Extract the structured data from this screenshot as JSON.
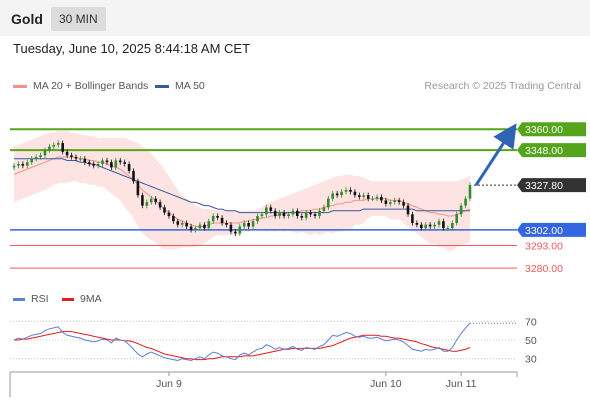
{
  "header": {
    "title": "Gold",
    "timeframe": "30 MIN"
  },
  "timestamp": "Tuesday, June 10, 2025 8:44:18 AM CET",
  "legend": {
    "ma20": {
      "label": "MA 20 + Bollinger Bands",
      "color": "#f4908c"
    },
    "ma50": {
      "label": "MA 50",
      "color": "#3a5a9c"
    },
    "rsi": {
      "label": "RSI",
      "color": "#5b7fd4"
    },
    "rsi_ma": {
      "label": "9MA",
      "color": "#e31c1c"
    }
  },
  "credit": "Research © 2025 Trading Central",
  "colors": {
    "up": "#2e8b2e",
    "down": "#111111",
    "resistance": "#55a51c",
    "pivot": "#3366e0",
    "support": "#ef5a5a",
    "price": "#333333",
    "arrow": "#2e64b4",
    "band": "#fde0de"
  },
  "chart_data": [
    {
      "type": "candlestick",
      "instrument": "Gold",
      "timeframe": "30 MIN",
      "ylim": [
        3272,
        3378
      ],
      "x_ticks": [
        "Jun 9",
        "Jun 10",
        "Jun 11"
      ],
      "levels": [
        {
          "label": "3360.00",
          "value": 3360.0,
          "kind": "resistance"
        },
        {
          "label": "3348.00",
          "value": 3348.0,
          "kind": "resistance"
        },
        {
          "label": "3327.80",
          "value": 3327.8,
          "kind": "last"
        },
        {
          "label": "3302.00",
          "value": 3302.0,
          "kind": "pivot"
        },
        {
          "label": "3293.00",
          "value": 3293.0,
          "kind": "support"
        },
        {
          "label": "3280.00",
          "value": 3280.0,
          "kind": "support"
        }
      ],
      "close": [
        3339,
        3340,
        3339,
        3341,
        3343,
        3344,
        3345,
        3348,
        3350,
        3351,
        3352,
        3347,
        3345,
        3344,
        3343,
        3343,
        3341,
        3340,
        3339,
        3340,
        3342,
        3341,
        3338,
        3342,
        3341,
        3340,
        3336,
        3330,
        3322,
        3316,
        3318,
        3320,
        3318,
        3315,
        3312,
        3310,
        3307,
        3305,
        3306,
        3304,
        3302,
        3303,
        3305,
        3303,
        3307,
        3310,
        3309,
        3306,
        3305,
        3301,
        3300,
        3304,
        3306,
        3304,
        3307,
        3310,
        3311,
        3315,
        3313,
        3310,
        3312,
        3310,
        3311,
        3313,
        3310,
        3309,
        3312,
        3311,
        3310,
        3313,
        3315,
        3320,
        3323,
        3322,
        3324,
        3325,
        3324,
        3322,
        3321,
        3322,
        3320,
        3320,
        3321,
        3319,
        3317,
        3318,
        3319,
        3318,
        3316,
        3311,
        3306,
        3305,
        3303,
        3305,
        3304,
        3305,
        3307,
        3303,
        3303,
        3306,
        3311,
        3316,
        3320,
        3327.8
      ],
      "ma20": [
        3334,
        3335,
        3336,
        3337,
        3338,
        3339,
        3340,
        3341,
        3342,
        3343,
        3344,
        3344,
        3344,
        3344,
        3344,
        3343,
        3343,
        3342,
        3342,
        3341,
        3341,
        3340,
        3339,
        3338,
        3337,
        3335,
        3333,
        3331,
        3328,
        3325,
        3323,
        3321,
        3319,
        3316,
        3314,
        3312,
        3310,
        3308,
        3307,
        3306,
        3305,
        3304,
        3304,
        3304,
        3305,
        3306,
        3306,
        3306,
        3306,
        3306,
        3306,
        3306,
        3307,
        3307,
        3308,
        3308,
        3309,
        3309,
        3310,
        3310,
        3311,
        3311,
        3312,
        3312,
        3312,
        3313,
        3313,
        3313,
        3314,
        3314,
        3315,
        3316,
        3316,
        3317,
        3317,
        3318,
        3318,
        3319,
        3319,
        3319,
        3320,
        3320,
        3320,
        3320,
        3320,
        3319,
        3319,
        3319,
        3318,
        3317,
        3316,
        3315,
        3314,
        3313,
        3312,
        3312,
        3311,
        3311,
        3310,
        3310,
        3311,
        3312,
        3313,
        3314
      ],
      "ma50": [
        3343,
        3343,
        3343,
        3343,
        3343,
        3343,
        3343,
        3343,
        3343,
        3343,
        3343,
        3343,
        3342,
        3342,
        3342,
        3341,
        3341,
        3340,
        3340,
        3339,
        3338,
        3337,
        3336,
        3335,
        3334,
        3333,
        3332,
        3331,
        3330,
        3329,
        3328,
        3327,
        3326,
        3325,
        3324,
        3323,
        3322,
        3321,
        3320,
        3319,
        3318,
        3318,
        3317,
        3316,
        3316,
        3315,
        3314,
        3314,
        3313,
        3313,
        3313,
        3312,
        3312,
        3312,
        3312,
        3312,
        3312,
        3312,
        3312,
        3312,
        3312,
        3312,
        3312,
        3312,
        3312,
        3312,
        3312,
        3312,
        3312,
        3312,
        3312,
        3312,
        3313,
        3313,
        3313,
        3313,
        3313,
        3313,
        3313,
        3314,
        3314,
        3314,
        3314,
        3314,
        3314,
        3314,
        3314,
        3314,
        3314,
        3314,
        3314,
        3313,
        3313,
        3313,
        3313,
        3313,
        3313,
        3313,
        3313,
        3313,
        3313,
        3313,
        3313,
        3313
      ],
      "bb_upper": [
        3350,
        3351,
        3352,
        3353,
        3354,
        3355,
        3356,
        3357,
        3358,
        3358,
        3359,
        3359,
        3359,
        3358,
        3358,
        3357,
        3357,
        3356,
        3356,
        3355,
        3355,
        3355,
        3355,
        3355,
        3355,
        3355,
        3354,
        3353,
        3352,
        3350,
        3348,
        3346,
        3343,
        3340,
        3337,
        3333,
        3329,
        3325,
        3322,
        3320,
        3318,
        3316,
        3315,
        3314,
        3314,
        3314,
        3313,
        3313,
        3313,
        3313,
        3313,
        3313,
        3313,
        3313,
        3313,
        3314,
        3315,
        3317,
        3318,
        3319,
        3320,
        3321,
        3322,
        3323,
        3324,
        3325,
        3326,
        3327,
        3328,
        3329,
        3330,
        3331,
        3332,
        3333,
        3333,
        3334,
        3334,
        3333,
        3333,
        3332,
        3331,
        3330,
        3330,
        3330,
        3330,
        3330,
        3330,
        3330,
        3330,
        3330,
        3330,
        3330,
        3330,
        3330,
        3330,
        3330,
        3330,
        3330,
        3330,
        3330,
        3330,
        3331,
        3332,
        3333
      ],
      "bb_lower": [
        3318,
        3319,
        3320,
        3321,
        3322,
        3323,
        3324,
        3325,
        3326,
        3328,
        3329,
        3329,
        3329,
        3330,
        3330,
        3329,
        3329,
        3328,
        3328,
        3327,
        3327,
        3325,
        3323,
        3321,
        3319,
        3315,
        3312,
        3309,
        3304,
        3300,
        3298,
        3296,
        3295,
        3292,
        3291,
        3291,
        3291,
        3291,
        3292,
        3292,
        3292,
        3292,
        3293,
        3294,
        3296,
        3298,
        3299,
        3299,
        3299,
        3299,
        3299,
        3299,
        3301,
        3301,
        3303,
        3302,
        3303,
        3301,
        3302,
        3301,
        3302,
        3301,
        3302,
        3301,
        3300,
        3301,
        3300,
        3299,
        3300,
        3299,
        3300,
        3301,
        3300,
        3301,
        3301,
        3302,
        3302,
        3305,
        3305,
        3306,
        3309,
        3310,
        3310,
        3310,
        3310,
        3308,
        3308,
        3308,
        3306,
        3304,
        3302,
        3300,
        3298,
        3296,
        3294,
        3294,
        3292,
        3292,
        3290,
        3290,
        3292,
        3293,
        3294,
        3295
      ],
      "projection": {
        "from": 3327.8,
        "to": 3360.0
      }
    },
    {
      "type": "line",
      "name": "RSI",
      "ylim": [
        20,
        80
      ],
      "y_ticks": [
        70,
        50,
        30
      ],
      "rsi": [
        50,
        52,
        51,
        53,
        55,
        56,
        57,
        60,
        62,
        63,
        64,
        58,
        55,
        54,
        53,
        52,
        50,
        49,
        48,
        49,
        51,
        50,
        47,
        52,
        50,
        49,
        45,
        40,
        35,
        32,
        35,
        37,
        35,
        33,
        31,
        30,
        29,
        28,
        30,
        29,
        28,
        30,
        32,
        30,
        34,
        37,
        36,
        33,
        32,
        30,
        29,
        34,
        36,
        34,
        37,
        40,
        41,
        45,
        43,
        40,
        42,
        40,
        41,
        43,
        40,
        39,
        42,
        41,
        40,
        43,
        45,
        50,
        55,
        54,
        56,
        58,
        57,
        54,
        53,
        54,
        52,
        52,
        53,
        51,
        49,
        50,
        51,
        50,
        48,
        44,
        40,
        39,
        38,
        40,
        39,
        40,
        42,
        38,
        38,
        42,
        50,
        57,
        63,
        68
      ],
      "rsi_ma": [
        50,
        50,
        51,
        51,
        52,
        53,
        54,
        55,
        56,
        57,
        58,
        59,
        59,
        59,
        58,
        57,
        56,
        55,
        54,
        53,
        52,
        51,
        50,
        50,
        50,
        49,
        49,
        48,
        46,
        44,
        42,
        41,
        39,
        37,
        35,
        34,
        33,
        32,
        31,
        30,
        30,
        29,
        29,
        29,
        30,
        30,
        31,
        32,
        32,
        32,
        32,
        32,
        33,
        33,
        33,
        34,
        35,
        36,
        37,
        38,
        39,
        40,
        40,
        41,
        41,
        41,
        41,
        41,
        41,
        41,
        42,
        43,
        44,
        46,
        48,
        50,
        52,
        53,
        54,
        55,
        55,
        55,
        55,
        54,
        54,
        53,
        52,
        52,
        51,
        50,
        49,
        48,
        46,
        45,
        43,
        42,
        41,
        40,
        39,
        38,
        38,
        39,
        40,
        42
      ]
    }
  ]
}
